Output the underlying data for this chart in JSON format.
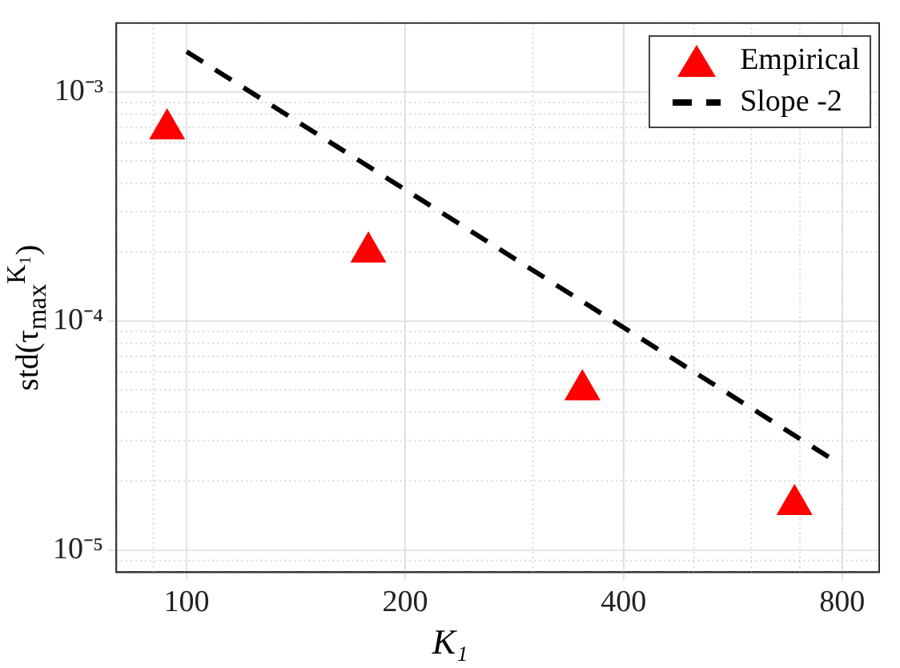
{
  "chart_data": {
    "type": "scatter",
    "xlabel": "K₁",
    "ylabel": "std(τ$_{max}$$^{K₁}$)",
    "log": "xy",
    "grid": true,
    "legend": "top right",
    "xlim": [
      80,
      900
    ],
    "xticks": [
      100,
      200,
      400,
      800
    ],
    "ylim": [
      8e-06,
      0.002
    ],
    "yticks": [
      {
        "value": 1e-05,
        "label": "10⁻⁵"
      },
      {
        "value": 0.0001,
        "label": "10⁻⁴"
      },
      {
        "value": 0.001,
        "label": "10⁻³"
      }
    ],
    "series": [
      {
        "name": "Empirical",
        "color": "#ff0000",
        "marker": "triangle",
        "x": [
          94,
          178,
          351,
          688
        ],
        "values": [
          0.00069,
          0.0002,
          5e-05,
          1.58e-05
        ]
      },
      {
        "name": "Slope -2",
        "type": "line",
        "color": "#000000",
        "line_style": "dashed",
        "marker": "none",
        "x": [
          100,
          768
        ],
        "values": [
          0.0015,
          2.54e-05
        ]
      }
    ]
  }
}
